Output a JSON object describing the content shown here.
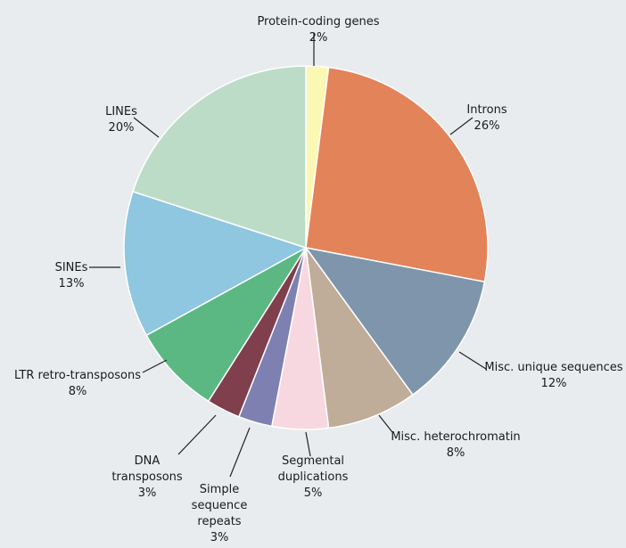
{
  "chart_data": {
    "type": "pie",
    "title": "",
    "start": "top",
    "direction": "clockwise",
    "slices": [
      {
        "label": [
          "Protein-coding genes"
        ],
        "pct_label": "2%",
        "value": 2,
        "color": "#fbf8b4"
      },
      {
        "label": [
          "Introns"
        ],
        "pct_label": "26%",
        "value": 26,
        "color": "#e38359"
      },
      {
        "label": [
          "Misc. unique sequences"
        ],
        "pct_label": "12%",
        "value": 12,
        "color": "#7f95ab"
      },
      {
        "label": [
          "Misc. heterochromatin"
        ],
        "pct_label": "8%",
        "value": 8,
        "color": "#bfac99"
      },
      {
        "label": [
          "Segmental",
          "duplications"
        ],
        "pct_label": "5%",
        "value": 5,
        "color": "#f8d8e0"
      },
      {
        "label": [
          "Simple",
          "sequence",
          "repeats"
        ],
        "pct_label": "3%",
        "value": 3,
        "color": "#7d80b1"
      },
      {
        "label": [
          "DNA",
          "transposons"
        ],
        "pct_label": "3%",
        "value": 3,
        "color": "#7f3f4c"
      },
      {
        "label": [
          "LTR retro-transposons"
        ],
        "pct_label": "8%",
        "value": 8,
        "color": "#5bb883"
      },
      {
        "label": [
          "SINEs"
        ],
        "pct_label": "13%",
        "value": 13,
        "color": "#8fc6e0"
      },
      {
        "label": [
          "LINEs"
        ],
        "pct_label": "20%",
        "value": 20,
        "color": "#bcdcc8"
      }
    ]
  }
}
